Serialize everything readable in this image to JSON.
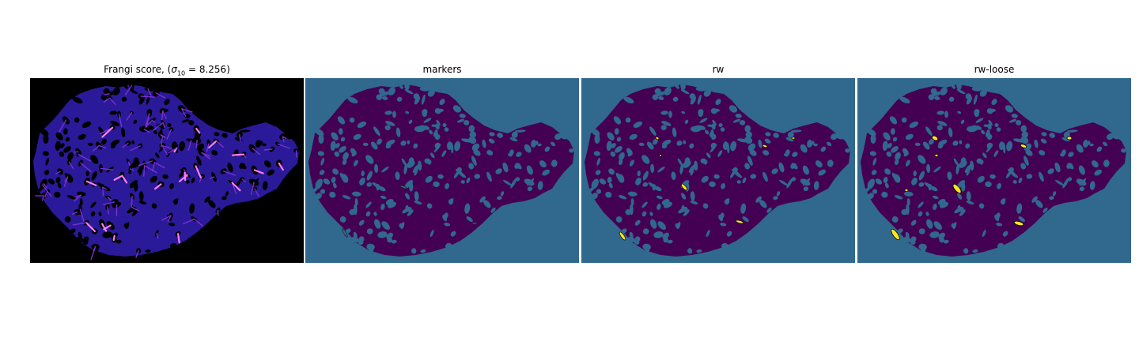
{
  "figure": {
    "panels": [
      {
        "id": "frangi",
        "title_prefix": "Frangi score, (",
        "sigma_symbol": "σ",
        "sigma_sub": "10",
        "title_suffix": " = 8.256)"
      },
      {
        "id": "markers",
        "title": "markers"
      },
      {
        "id": "rw",
        "title": "rw"
      },
      {
        "id": "rw_loose",
        "title": "rw-loose"
      }
    ],
    "colors": {
      "background_teal": "#31688e",
      "tissue_purple": "#440154",
      "frangi_black": "#000000",
      "frangi_low": "#2a1a9a",
      "frangi_mid": "#7b2fd0",
      "frangi_high": "#ff7ef0",
      "highlight_yellow": "#fde725",
      "highlight_green": "#35b779"
    }
  }
}
